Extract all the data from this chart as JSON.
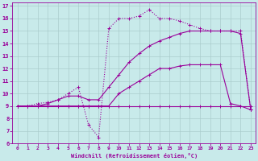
{
  "bg_color": "#c8eaea",
  "line_color": "#990099",
  "grid_color": "#aacccc",
  "xlim": [
    -0.5,
    23.5
  ],
  "ylim": [
    6,
    17.3
  ],
  "xticks": [
    0,
    1,
    2,
    3,
    4,
    5,
    6,
    7,
    8,
    9,
    10,
    11,
    12,
    13,
    14,
    15,
    16,
    17,
    18,
    19,
    20,
    21,
    22,
    23
  ],
  "yticks": [
    6,
    7,
    8,
    9,
    10,
    11,
    12,
    13,
    14,
    15,
    16,
    17
  ],
  "xlabel": "Windchill (Refroidissement éolien,°C)",
  "series": [
    {
      "x": [
        0,
        1,
        2,
        3,
        4,
        5,
        6,
        7,
        8,
        9,
        10,
        11,
        12,
        13,
        14,
        15,
        16,
        17,
        18,
        19,
        20,
        21,
        22,
        23
      ],
      "y": [
        9,
        9,
        9,
        9,
        9,
        9,
        9,
        9,
        9,
        9,
        9,
        9,
        9,
        9,
        9,
        9,
        9,
        9,
        9,
        9,
        9,
        9,
        9,
        9
      ],
      "style": "solid",
      "marker": "+"
    },
    {
      "x": [
        0,
        1,
        2,
        3,
        4,
        5,
        6,
        7,
        8,
        9,
        10,
        11,
        12,
        13,
        14,
        15,
        16,
        17,
        18,
        19,
        20,
        21,
        22,
        23
      ],
      "y": [
        9,
        9,
        9,
        9,
        9,
        9,
        9,
        9,
        9,
        9,
        10,
        10.5,
        11,
        11.5,
        12,
        12,
        12.2,
        12.3,
        12.3,
        12.3,
        12.3,
        9.2,
        9,
        8.7
      ],
      "style": "solid",
      "marker": "+"
    },
    {
      "x": [
        0,
        1,
        2,
        3,
        4,
        5,
        6,
        7,
        8,
        9,
        10,
        11,
        12,
        13,
        14,
        15,
        16,
        17,
        18,
        19,
        20,
        21,
        22,
        23
      ],
      "y": [
        9,
        9,
        9,
        9.2,
        9.5,
        9.8,
        9.8,
        9.5,
        9.5,
        10.5,
        11.5,
        12.5,
        13.2,
        13.8,
        14.2,
        14.5,
        14.8,
        15,
        15,
        15,
        15,
        15,
        14.8,
        8.7
      ],
      "style": "solid",
      "marker": "+"
    },
    {
      "x": [
        0,
        1,
        2,
        3,
        4,
        5,
        6,
        7,
        8,
        9,
        10,
        11,
        12,
        13,
        14,
        15,
        16,
        17,
        18,
        19,
        20,
        21,
        22,
        23
      ],
      "y": [
        9,
        9,
        9.2,
        9.3,
        9.5,
        10,
        10.5,
        7.5,
        6.5,
        15.2,
        16,
        16,
        16.2,
        16.7,
        16,
        16,
        15.8,
        15.5,
        15.2,
        15,
        15,
        15,
        15,
        8.7
      ],
      "style": "dotted",
      "marker": "+"
    }
  ]
}
